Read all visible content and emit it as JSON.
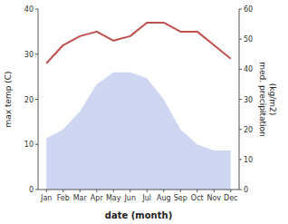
{
  "chart_data": {
    "type": "line",
    "x_label": "date (month)",
    "y_label": "max temp (C)",
    "y2_label": "med. precipitation\n(kg/m2)",
    "categories": [
      "Jan",
      "Feb",
      "Mar",
      "Apr",
      "May",
      "Jun",
      "Jul",
      "Aug",
      "Sep",
      "Oct",
      "Nov",
      "Dec"
    ],
    "series": [
      {
        "type": "area",
        "axis": "y2",
        "color": "#c5cff0",
        "values": [
          17,
          20,
          26,
          35,
          39,
          39,
          37,
          30,
          20,
          15,
          13,
          13
        ]
      },
      {
        "type": "line",
        "color": "#c0504d",
        "values": [
          28,
          32,
          34,
          35,
          33,
          34,
          37,
          37,
          35,
          35,
          32,
          29
        ]
      }
    ],
    "ylim": [
      0,
      40
    ],
    "yticks": [
      0,
      10,
      20,
      30,
      40
    ],
    "y2lim": [
      0,
      60
    ],
    "y2ticks": [
      0,
      10,
      20,
      30,
      40,
      50,
      60
    ],
    "grid": false
  }
}
